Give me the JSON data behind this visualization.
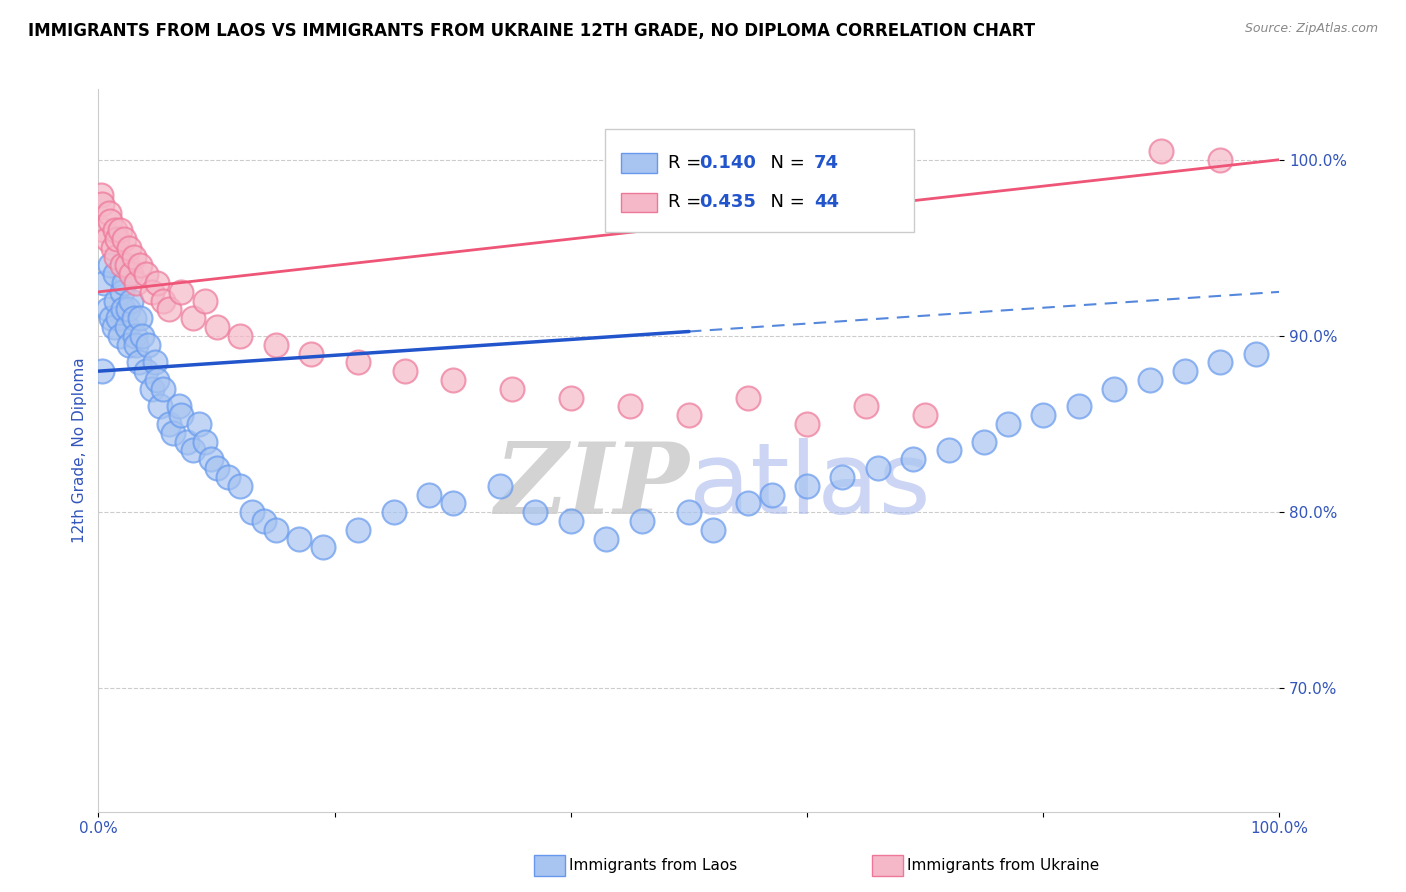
{
  "title": "IMMIGRANTS FROM LAOS VS IMMIGRANTS FROM UKRAINE 12TH GRADE, NO DIPLOMA CORRELATION CHART",
  "source": "Source: ZipAtlas.com",
  "ylabel": "12th Grade, No Diploma",
  "xmin": 0.0,
  "xmax": 100.0,
  "ymin": 63.0,
  "ymax": 104.0,
  "laos_color": "#a8c4f0",
  "laos_edge_color": "#6699ee",
  "ukraine_color": "#f5b8c8",
  "ukraine_edge_color": "#ee7799",
  "laos_R": 0.14,
  "laos_N": 74,
  "ukraine_R": 0.435,
  "ukraine_N": 44,
  "watermark_zip": "ZIP",
  "watermark_atlas": "atlas",
  "laos_scatter_x": [
    0.3,
    0.5,
    0.8,
    1.0,
    1.1,
    1.3,
    1.4,
    1.5,
    1.7,
    1.8,
    2.0,
    2.1,
    2.2,
    2.4,
    2.5,
    2.6,
    2.8,
    3.0,
    3.1,
    3.2,
    3.4,
    3.5,
    3.7,
    4.0,
    4.2,
    4.5,
    4.8,
    5.0,
    5.2,
    5.5,
    6.0,
    6.3,
    6.8,
    7.0,
    7.5,
    8.0,
    8.5,
    9.0,
    9.5,
    10.0,
    11.0,
    12.0,
    13.0,
    14.0,
    15.0,
    17.0,
    19.0,
    22.0,
    25.0,
    28.0,
    30.0,
    34.0,
    37.0,
    40.0,
    43.0,
    46.0,
    50.0,
    52.0,
    55.0,
    57.0,
    60.0,
    63.0,
    66.0,
    69.0,
    72.0,
    75.0,
    77.0,
    80.0,
    83.0,
    86.0,
    89.0,
    92.0,
    95.0,
    98.0
  ],
  "laos_scatter_y": [
    88.0,
    93.0,
    91.5,
    94.0,
    91.0,
    90.5,
    93.5,
    92.0,
    91.0,
    90.0,
    92.5,
    91.5,
    93.0,
    90.5,
    91.5,
    89.5,
    92.0,
    91.0,
    90.0,
    89.5,
    88.5,
    91.0,
    90.0,
    88.0,
    89.5,
    87.0,
    88.5,
    87.5,
    86.0,
    87.0,
    85.0,
    84.5,
    86.0,
    85.5,
    84.0,
    83.5,
    85.0,
    84.0,
    83.0,
    82.5,
    82.0,
    81.5,
    80.0,
    79.5,
    79.0,
    78.5,
    78.0,
    79.0,
    80.0,
    81.0,
    80.5,
    81.5,
    80.0,
    79.5,
    78.5,
    79.5,
    80.0,
    79.0,
    80.5,
    81.0,
    81.5,
    82.0,
    82.5,
    83.0,
    83.5,
    84.0,
    85.0,
    85.5,
    86.0,
    87.0,
    87.5,
    88.0,
    88.5,
    89.0
  ],
  "ukraine_scatter_x": [
    0.2,
    0.3,
    0.5,
    0.7,
    0.9,
    1.0,
    1.2,
    1.4,
    1.5,
    1.6,
    1.8,
    2.0,
    2.2,
    2.4,
    2.6,
    2.8,
    3.0,
    3.2,
    3.5,
    4.0,
    4.5,
    5.0,
    5.5,
    6.0,
    7.0,
    8.0,
    9.0,
    10.0,
    12.0,
    15.0,
    18.0,
    22.0,
    26.0,
    30.0,
    35.0,
    40.0,
    45.0,
    50.0,
    55.0,
    60.0,
    65.0,
    70.0,
    90.0,
    95.0
  ],
  "ukraine_scatter_y": [
    98.0,
    97.5,
    96.0,
    95.5,
    97.0,
    96.5,
    95.0,
    96.0,
    94.5,
    95.5,
    96.0,
    94.0,
    95.5,
    94.0,
    95.0,
    93.5,
    94.5,
    93.0,
    94.0,
    93.5,
    92.5,
    93.0,
    92.0,
    91.5,
    92.5,
    91.0,
    92.0,
    90.5,
    90.0,
    89.5,
    89.0,
    88.5,
    88.0,
    87.5,
    87.0,
    86.5,
    86.0,
    85.5,
    86.5,
    85.0,
    86.0,
    85.5,
    100.5,
    100.0
  ]
}
